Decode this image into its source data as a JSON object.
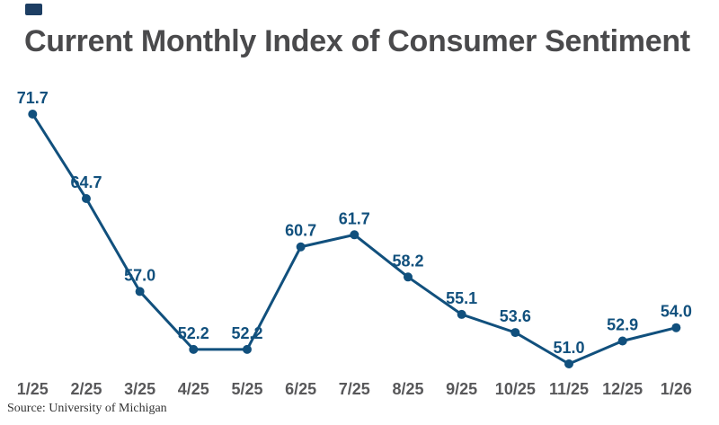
{
  "brand": {
    "color": "#1d3e63"
  },
  "chart_data": {
    "type": "line",
    "title": "Current Monthly Index of Consumer Sentiment",
    "categories": [
      "1/25",
      "2/25",
      "3/25",
      "4/25",
      "5/25",
      "6/25",
      "7/25",
      "8/25",
      "9/25",
      "10/25",
      "11/25",
      "12/25",
      "1/26"
    ],
    "values": [
      71.7,
      64.7,
      57.0,
      52.2,
      52.2,
      60.7,
      61.7,
      58.2,
      55.1,
      53.6,
      51.0,
      52.9,
      54.0
    ],
    "value_labels_shown": true,
    "grid": false,
    "legend": "none",
    "ylim": [
      51.0,
      71.7
    ],
    "xlabel": "",
    "ylabel": "",
    "source": "Source: University of Michigan",
    "colors": {
      "line": "#11507d",
      "point": "#11507d",
      "value_label": "#11507d",
      "title": "#4a4a4c",
      "axis_label": "#58585a",
      "source": "#333333"
    }
  }
}
